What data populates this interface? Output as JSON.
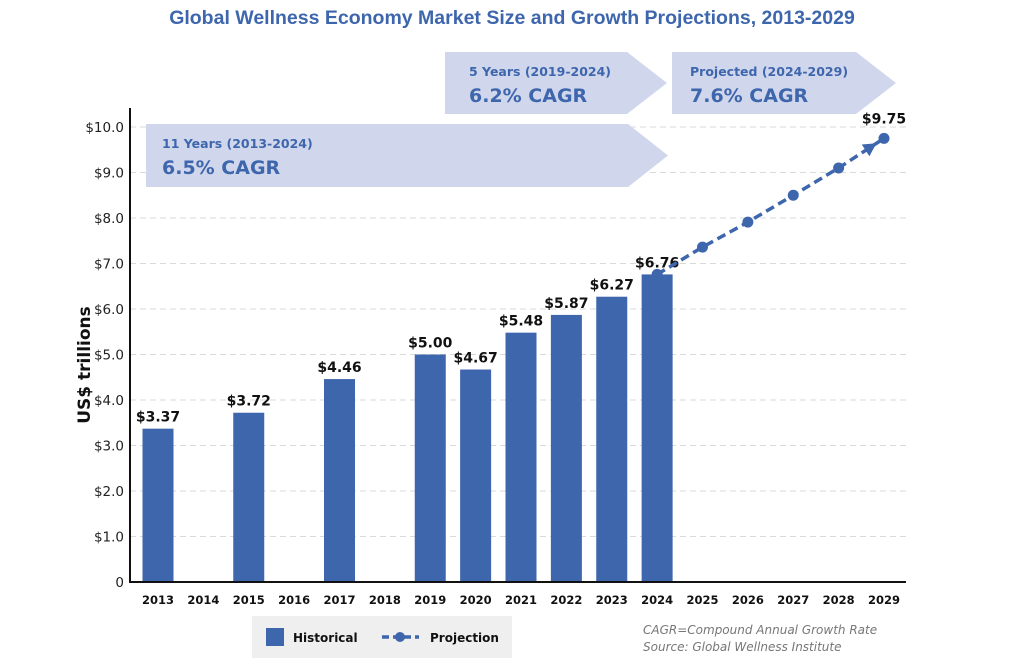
{
  "colors": {
    "bar": "#3e66ad",
    "title": "#3e66ad",
    "band_fill": "#d0d6ec",
    "band_text": "#3e66ad",
    "grid": "#d9d9d9",
    "legend_bg": "#efefef"
  },
  "chart_data": {
    "type": "bar",
    "title": "Global Wellness Economy Market Size and Growth Projections, 2013-2029",
    "xlabel": "",
    "ylabel": "US$ trillions",
    "ylim": [
      0,
      10
    ],
    "grid": true,
    "yticks": [
      {
        "value": 0,
        "label": "0"
      },
      {
        "value": 1,
        "label": "$1.0"
      },
      {
        "value": 2,
        "label": "$2.0"
      },
      {
        "value": 3,
        "label": "$3.0"
      },
      {
        "value": 4,
        "label": "$4.0"
      },
      {
        "value": 5,
        "label": "$5.0"
      },
      {
        "value": 6,
        "label": "$6.0"
      },
      {
        "value": 7,
        "label": "$7.0"
      },
      {
        "value": 8,
        "label": "$8.0"
      },
      {
        "value": 9,
        "label": "$9.0"
      },
      {
        "value": 10,
        "label": "$10.0"
      }
    ],
    "categories": [
      "2013",
      "2014",
      "2015",
      "2016",
      "2017",
      "2018",
      "2019",
      "2020",
      "2021",
      "2022",
      "2023",
      "2024",
      "2025",
      "2026",
      "2027",
      "2028",
      "2029"
    ],
    "series": [
      {
        "name": "Historical",
        "type": "bar",
        "points": [
          {
            "x": "2013",
            "y": 3.37,
            "label": "$3.37"
          },
          {
            "x": "2015",
            "y": 3.72,
            "label": "$3.72"
          },
          {
            "x": "2017",
            "y": 4.46,
            "label": "$4.46"
          },
          {
            "x": "2019",
            "y": 5.0,
            "label": "$5.00"
          },
          {
            "x": "2020",
            "y": 4.67,
            "label": "$4.67"
          },
          {
            "x": "2021",
            "y": 5.48,
            "label": "$5.48"
          },
          {
            "x": "2022",
            "y": 5.87,
            "label": "$5.87"
          },
          {
            "x": "2023",
            "y": 6.27,
            "label": "$6.27"
          },
          {
            "x": "2024",
            "y": 6.76,
            "label": "$6.76"
          }
        ]
      },
      {
        "name": "Projection",
        "type": "line",
        "style": "dashed",
        "points": [
          {
            "x": "2024",
            "y": 6.76
          },
          {
            "x": "2025",
            "y": 7.36
          },
          {
            "x": "2026",
            "y": 7.91
          },
          {
            "x": "2027",
            "y": 8.5
          },
          {
            "x": "2028",
            "y": 9.1
          },
          {
            "x": "2029",
            "y": 9.75,
            "label": "$9.75"
          }
        ]
      }
    ],
    "annotations": [
      {
        "id": "cagr-11y",
        "subtitle": "11 Years (2013-2024)",
        "value": "6.5% CAGR",
        "from": "2013",
        "to": "2024"
      },
      {
        "id": "cagr-5y",
        "subtitle": "5 Years (2019-2024)",
        "value": "6.2% CAGR",
        "from": "2019",
        "to": "2024"
      },
      {
        "id": "cagr-proj",
        "subtitle": "Projected (2024-2029)",
        "value": "7.6% CAGR",
        "from": "2024",
        "to": "2029"
      }
    ],
    "legend": {
      "position": "bottom-left",
      "entries": [
        {
          "name": "Historical",
          "marker": "square"
        },
        {
          "name": "Projection",
          "marker": "dashed-line-dot"
        }
      ]
    },
    "notes": [
      "CAGR=Compound Annual Growth Rate",
      "Source: Global Wellness Institute"
    ]
  }
}
